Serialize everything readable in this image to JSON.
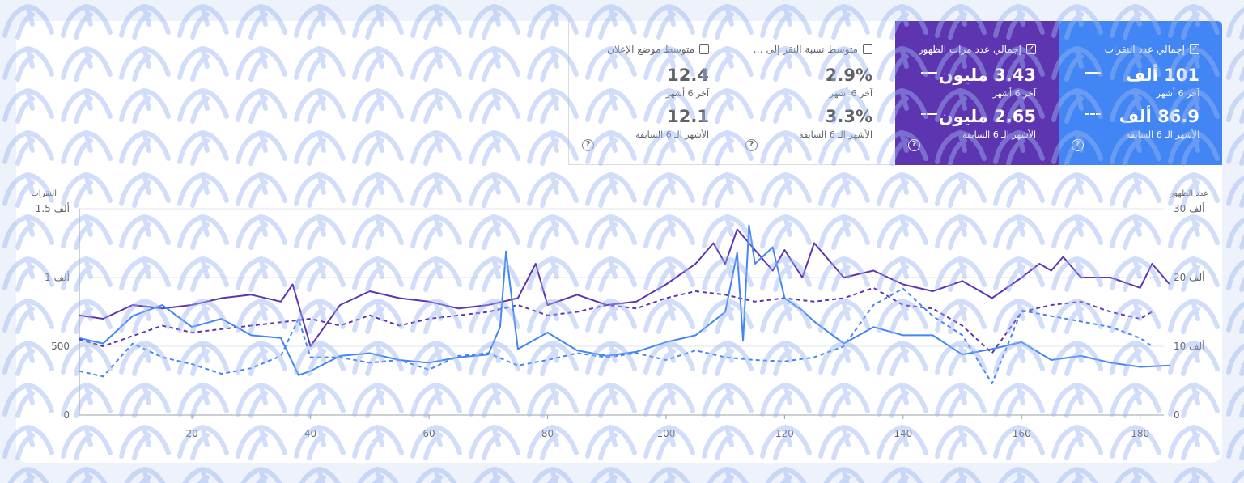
{
  "tiles": {
    "clicks": {
      "label": "إجمالي عدد النقرات",
      "checked": true,
      "current_value": "101 ألف",
      "current_period": "آخر 6 أشهر",
      "previous_value": "86.9 ألف",
      "previous_period": "الأشهر الـ 6 السابقة",
      "help": "?",
      "color": "#4285f4"
    },
    "impressions": {
      "label": "إجمالي عدد مرات الظهور",
      "checked": true,
      "current_value": "3.43 مليون",
      "current_period": "آخر 6 أشهر",
      "previous_value": "2.65 مليون",
      "previous_period": "الأشهر الـ 6 السابقة",
      "help": "?",
      "color": "#5e35b1"
    },
    "ctr": {
      "label": "متوسط نسبة النقر إلى الظهور",
      "checked": false,
      "current_value": "2.9%",
      "current_period": "آخر 6 أشهر",
      "previous_value": "3.3%",
      "previous_period": "الأشهر الـ 6 السابقة",
      "help": "?"
    },
    "position": {
      "label": "متوسط موضع الإعلان",
      "checked": false,
      "current_value": "12.4",
      "current_period": "آخر 6 أشهر",
      "previous_value": "12.1",
      "previous_period": "الأشهر الـ 6 السابقة",
      "help": "?"
    }
  },
  "chart_data": {
    "type": "line",
    "left_axis_title": "النقرات",
    "right_axis_title": "عدد الظهور",
    "left_ticks": [
      "0",
      "500",
      "1 ألف",
      "1.5 ألف"
    ],
    "left_tick_values": [
      0,
      500,
      1000,
      1500
    ],
    "right_ticks": [
      "0",
      "10 ألف",
      "20 ألف",
      "30 ألف"
    ],
    "right_tick_values": [
      0,
      10000,
      20000,
      30000
    ],
    "x_ticks": [
      20,
      40,
      60,
      80,
      100,
      120,
      140,
      160,
      180
    ],
    "xlim": [
      1,
      184
    ],
    "ylim_left": [
      0,
      1500
    ],
    "ylim_right": [
      0,
      30000
    ],
    "grid": true,
    "series": [
      {
        "id": "impressions-current",
        "axis": "right",
        "dashed": false,
        "color": "#5e35b1",
        "x": [
          1,
          5,
          10,
          15,
          20,
          25,
          30,
          35,
          37,
          40,
          45,
          50,
          55,
          60,
          65,
          70,
          75,
          78,
          80,
          85,
          90,
          95,
          100,
          105,
          108,
          110,
          112,
          113,
          115,
          118,
          120,
          123,
          125,
          130,
          135,
          140,
          145,
          150,
          155,
          160,
          163,
          165,
          167,
          170,
          175,
          180,
          182,
          185
        ],
        "values": [
          14.5,
          14,
          16,
          15.5,
          16,
          17,
          17.5,
          16.5,
          19,
          10,
          16,
          18,
          17,
          16.5,
          15.5,
          16,
          17,
          22,
          16,
          17.5,
          16,
          16.5,
          19,
          22,
          25,
          22,
          27,
          26,
          24,
          21,
          24,
          20,
          25,
          20,
          21,
          19,
          18,
          19.5,
          17,
          20,
          22,
          21,
          23,
          20,
          20,
          18.5,
          22,
          19
        ]
      },
      {
        "id": "impressions-previous",
        "axis": "right",
        "dashed": true,
        "color": "#5e35b1",
        "x": [
          1,
          5,
          10,
          15,
          20,
          25,
          30,
          35,
          40,
          45,
          50,
          55,
          60,
          65,
          70,
          75,
          80,
          85,
          90,
          95,
          100,
          105,
          110,
          115,
          120,
          125,
          130,
          135,
          140,
          145,
          150,
          155,
          160,
          165,
          170,
          175,
          180,
          182
        ],
        "values": [
          11,
          10,
          11.5,
          13,
          12,
          12.5,
          13,
          13.5,
          14,
          13,
          14.5,
          13,
          14,
          14.5,
          15,
          16,
          14.5,
          15,
          16,
          15.5,
          17,
          18,
          17.5,
          16.5,
          17,
          16.5,
          17,
          18.5,
          16,
          15.5,
          13,
          9,
          15,
          16,
          16.5,
          15,
          14,
          15
        ]
      },
      {
        "id": "clicks-current",
        "axis": "left",
        "dashed": false,
        "color": "#4285f4",
        "x": [
          1,
          5,
          10,
          15,
          20,
          25,
          30,
          35,
          38,
          40,
          45,
          50,
          55,
          60,
          65,
          70,
          72,
          73,
          75,
          80,
          85,
          90,
          95,
          100,
          105,
          110,
          112,
          113,
          114,
          115,
          118,
          120,
          123,
          125,
          130,
          135,
          140,
          145,
          150,
          155,
          160,
          165,
          170,
          175,
          180,
          185
        ],
        "values": [
          560,
          520,
          720,
          800,
          640,
          700,
          580,
          560,
          290,
          320,
          430,
          450,
          400,
          380,
          420,
          440,
          640,
          1190,
          480,
          600,
          470,
          430,
          460,
          530,
          580,
          750,
          1180,
          540,
          1380,
          1100,
          1220,
          850,
          760,
          680,
          520,
          640,
          580,
          580,
          440,
          480,
          530,
          400,
          430,
          380,
          350,
          360
        ]
      },
      {
        "id": "clicks-previous",
        "axis": "left",
        "dashed": true,
        "color": "#4285f4",
        "x": [
          1,
          5,
          10,
          15,
          20,
          25,
          30,
          35,
          38,
          40,
          45,
          50,
          55,
          60,
          65,
          70,
          75,
          80,
          85,
          90,
          95,
          100,
          105,
          110,
          115,
          120,
          125,
          130,
          135,
          140,
          145,
          150,
          155,
          160,
          165,
          170,
          175,
          180,
          182
        ],
        "values": [
          320,
          280,
          520,
          420,
          370,
          300,
          340,
          430,
          700,
          420,
          420,
          380,
          400,
          330,
          430,
          450,
          360,
          400,
          450,
          420,
          450,
          400,
          470,
          420,
          400,
          390,
          420,
          500,
          800,
          920,
          720,
          580,
          230,
          760,
          720,
          680,
          640,
          560,
          500
        ]
      }
    ]
  }
}
